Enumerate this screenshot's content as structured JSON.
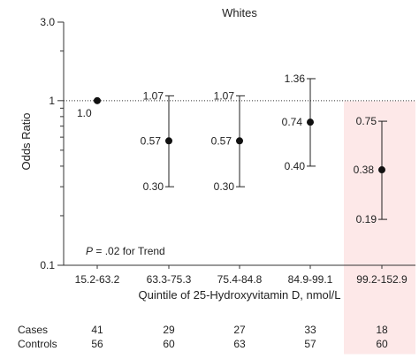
{
  "chart_data": {
    "type": "scatter",
    "title": "Whites",
    "xlabel": "Quintile of 25-Hydroxyvitamin D, nmol/L",
    "ylabel": "Odds Ratio",
    "y_scale": "log",
    "ylim": [
      0.1,
      3.0
    ],
    "y_ticks": [
      {
        "value": 0.1,
        "label": "0.1"
      },
      {
        "value": 1,
        "label": "1"
      },
      {
        "value": 3.0,
        "label": "3.0"
      }
    ],
    "reference_line": 1,
    "categories": [
      "15.2-63.2",
      "63.3-75.3",
      "75.4-84.8",
      "84.9-99.1",
      "99.2-152.9"
    ],
    "points": [
      {
        "category": "15.2-63.2",
        "or": 1.0,
        "or_label": "1.0",
        "lower": null,
        "upper": null
      },
      {
        "category": "63.3-75.3",
        "or": 0.57,
        "or_label": "0.57",
        "lower": 0.3,
        "lower_label": "0.30",
        "upper": 1.07,
        "upper_label": "1.07"
      },
      {
        "category": "75.4-84.8",
        "or": 0.57,
        "or_label": "0.57",
        "lower": 0.3,
        "lower_label": "0.30",
        "upper": 1.07,
        "upper_label": "1.07"
      },
      {
        "category": "84.9-99.1",
        "or": 0.74,
        "or_label": "0.74",
        "lower": 0.4,
        "lower_label": "0.40",
        "upper": 1.36,
        "upper_label": "1.36"
      },
      {
        "category": "99.2-152.9",
        "or": 0.38,
        "or_label": "0.38",
        "lower": 0.19,
        "lower_label": "0.19",
        "upper": 0.75,
        "upper_label": "0.75"
      }
    ],
    "highlighted_category": "99.2-152.9",
    "highlight_color": "#fde8e8",
    "annotation": {
      "prefix": "P",
      "text": " = .02 for Trend"
    },
    "table": {
      "rows": [
        {
          "label": "Cases",
          "values": [
            "41",
            "29",
            "27",
            "33",
            "18"
          ]
        },
        {
          "label": "Controls",
          "values": [
            "56",
            "60",
            "63",
            "57",
            "60"
          ]
        }
      ]
    }
  }
}
